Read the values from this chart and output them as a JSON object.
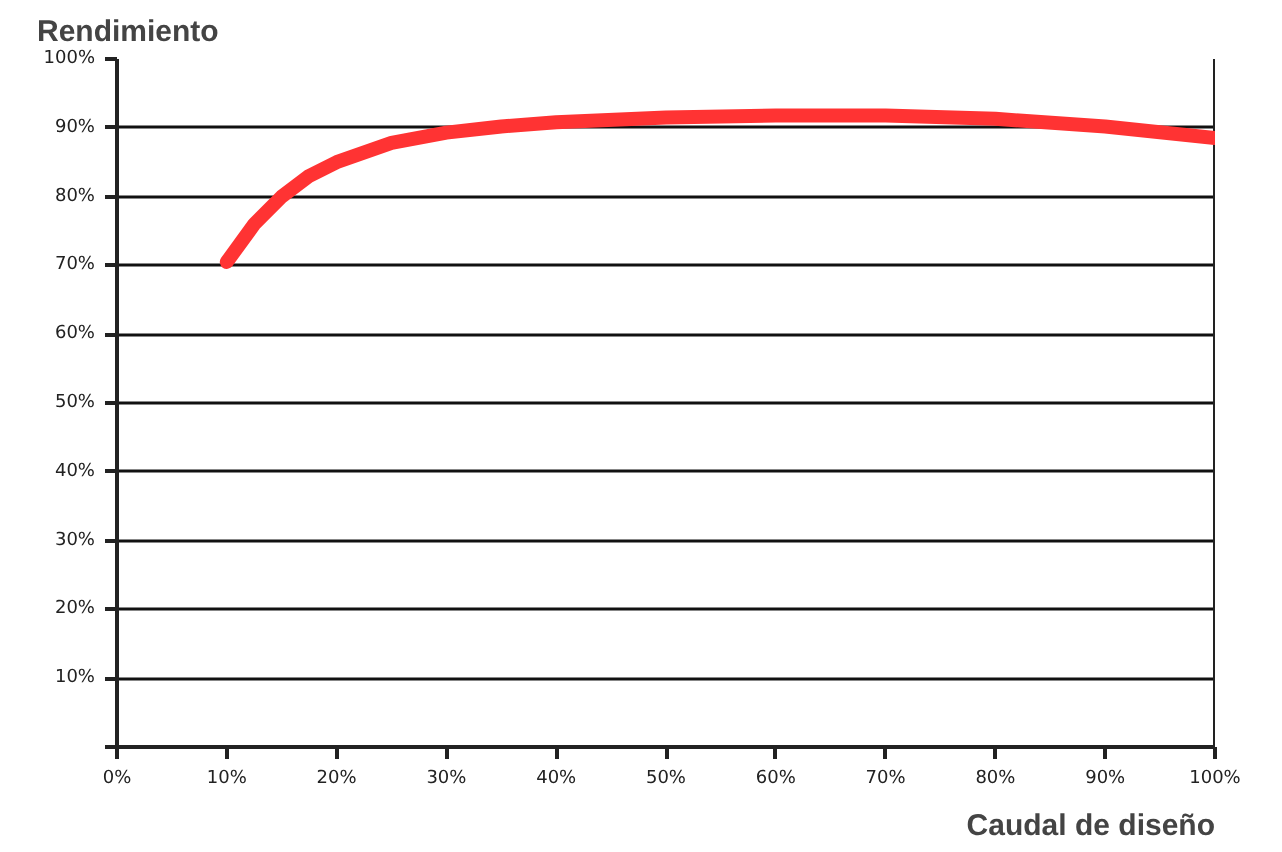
{
  "chart_data": {
    "type": "line",
    "ylabel": "Rendimiento",
    "xlabel": "Caudal de diseño",
    "x": [
      10,
      12.5,
      15,
      17.5,
      20,
      25,
      30,
      35,
      40,
      50,
      60,
      70,
      80,
      90,
      100
    ],
    "series": [
      {
        "color": "#ff3333",
        "values": [
          70.5,
          76,
          80,
          83,
          85,
          87.8,
          89.3,
          90.2,
          90.8,
          91.5,
          91.8,
          91.8,
          91.3,
          90.2,
          88.5
        ]
      }
    ],
    "xlim": [
      0,
      100
    ],
    "ylim": [
      0,
      100
    ],
    "xticks": [
      {
        "value": 0,
        "label": "0%"
      },
      {
        "value": 10,
        "label": "10%"
      },
      {
        "value": 20,
        "label": "20%"
      },
      {
        "value": 30,
        "label": "30%"
      },
      {
        "value": 40,
        "label": "40%"
      },
      {
        "value": 50,
        "label": "50%"
      },
      {
        "value": 60,
        "label": "60%"
      },
      {
        "value": 70,
        "label": "70%"
      },
      {
        "value": 80,
        "label": "80%"
      },
      {
        "value": 90,
        "label": "90%"
      },
      {
        "value": 100,
        "label": "100%"
      }
    ],
    "yticks": [
      {
        "value": 0,
        "label": null
      },
      {
        "value": 10,
        "label": "10%"
      },
      {
        "value": 20,
        "label": "20%"
      },
      {
        "value": 30,
        "label": "30%"
      },
      {
        "value": 40,
        "label": "40%"
      },
      {
        "value": 50,
        "label": "50%"
      },
      {
        "value": 60,
        "label": "60%"
      },
      {
        "value": 70,
        "label": "70%"
      },
      {
        "value": 80,
        "label": "80%"
      },
      {
        "value": 90,
        "label": "90%"
      },
      {
        "value": 100,
        "label": "100%"
      }
    ],
    "grid": "y",
    "marker": "none",
    "line_style": "solid"
  }
}
